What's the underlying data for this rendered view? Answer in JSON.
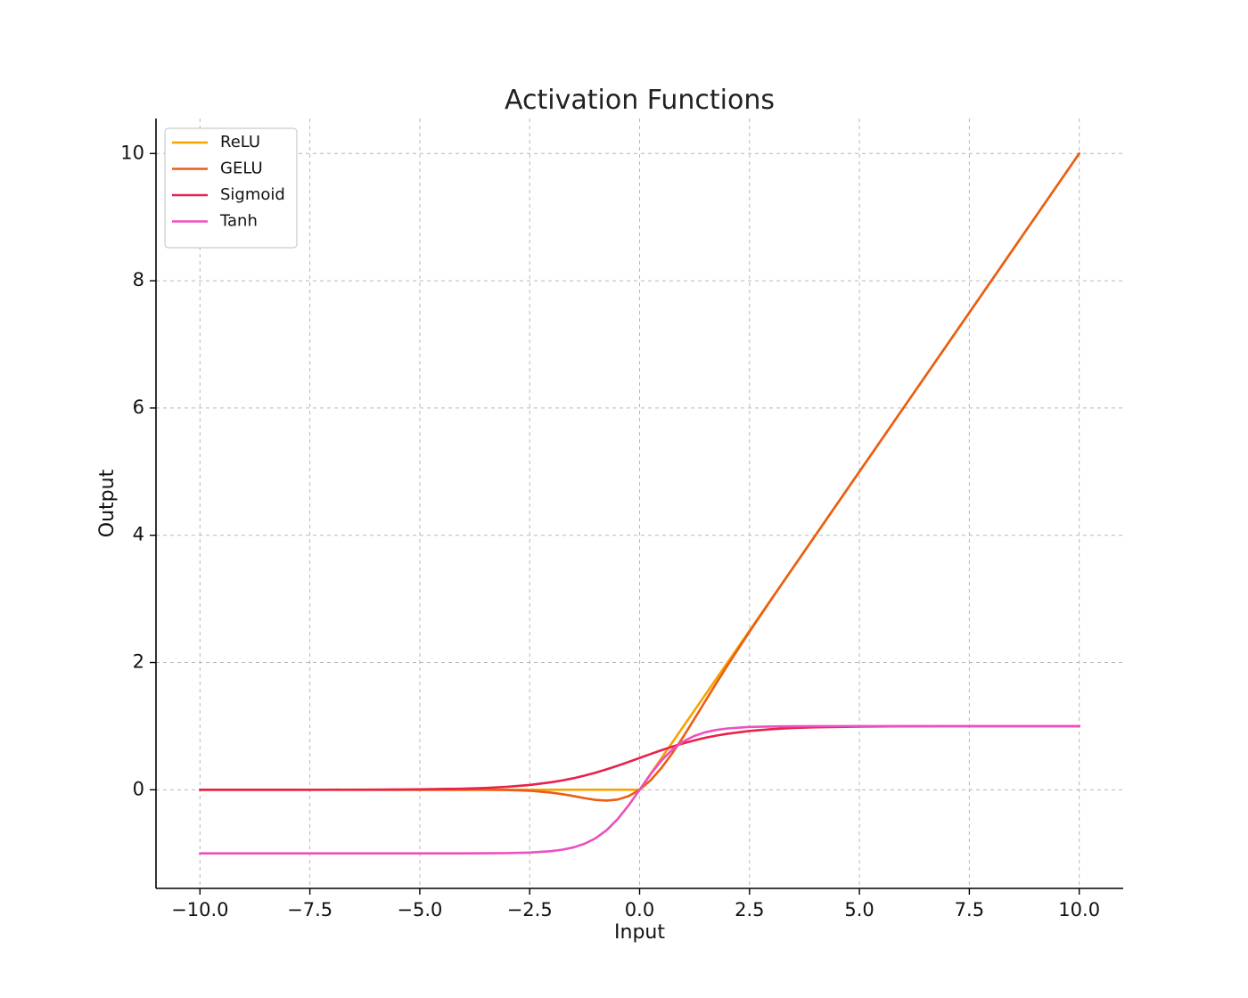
{
  "chart_data": {
    "type": "line",
    "title": "Activation Functions",
    "xlabel": "Input",
    "ylabel": "Output",
    "xlim": [
      -11,
      11
    ],
    "ylim": [
      -1.55,
      10.55
    ],
    "x_ticks": [
      -10,
      -7.5,
      -5,
      -2.5,
      0,
      2.5,
      5,
      7.5,
      10
    ],
    "x_tick_labels": [
      "−10.0",
      "−7.5",
      "−5.0",
      "−2.5",
      "0.0",
      "2.5",
      "5.0",
      "7.5",
      "10.0"
    ],
    "y_ticks": [
      0,
      2,
      4,
      6,
      8,
      10
    ],
    "y_tick_labels": [
      "0",
      "2",
      "4",
      "6",
      "8",
      "10"
    ],
    "grid": true,
    "legend": "upper left",
    "x": [
      -10,
      -9,
      -8,
      -7,
      -6,
      -5,
      -4,
      -3.5,
      -3,
      -2.5,
      -2,
      -1.75,
      -1.5,
      -1.25,
      -1,
      -0.75,
      -0.5,
      -0.25,
      0,
      0.25,
      0.5,
      0.75,
      1,
      1.25,
      1.5,
      1.75,
      2,
      2.5,
      3,
      3.5,
      4,
      5,
      6,
      7,
      8,
      9,
      10
    ],
    "series": [
      {
        "name": "ReLU",
        "color": "#f5a300",
        "values": [
          0,
          0,
          0,
          0,
          0,
          0,
          0,
          0,
          0,
          0,
          0,
          0,
          0,
          0,
          0,
          0,
          0,
          0,
          0,
          0.25,
          0.5,
          0.75,
          1,
          1.25,
          1.5,
          1.75,
          2,
          2.5,
          3,
          3.5,
          4,
          5,
          6,
          7,
          8,
          9,
          10
        ]
      },
      {
        "name": "GELU",
        "color": "#ea5e13",
        "values": [
          0,
          0,
          0,
          0,
          0,
          0,
          -0.0001,
          -0.0008,
          -0.004,
          -0.015,
          -0.045,
          -0.07,
          -0.1,
          -0.132,
          -0.159,
          -0.17,
          -0.154,
          -0.1,
          0,
          0.15,
          0.346,
          0.58,
          0.841,
          1.118,
          1.4,
          1.68,
          1.955,
          2.485,
          2.996,
          3.499,
          4,
          5,
          6,
          7,
          8,
          9,
          10
        ]
      },
      {
        "name": "Sigmoid",
        "color": "#e8224a",
        "values": [
          5e-05,
          0.0001,
          0.0003,
          0.0009,
          0.0025,
          0.0067,
          0.018,
          0.029,
          0.047,
          0.076,
          0.119,
          0.148,
          0.182,
          0.223,
          0.269,
          0.321,
          0.378,
          0.438,
          0.5,
          0.562,
          0.622,
          0.679,
          0.731,
          0.777,
          0.818,
          0.852,
          0.881,
          0.924,
          0.953,
          0.971,
          0.982,
          0.993,
          0.998,
          0.999,
          1,
          1,
          1
        ]
      },
      {
        "name": "Tanh",
        "color": "#ec4fc0",
        "values": [
          -1,
          -1,
          -1,
          -1,
          -1,
          -0.9999,
          -0.9993,
          -0.998,
          -0.995,
          -0.987,
          -0.964,
          -0.941,
          -0.905,
          -0.848,
          -0.762,
          -0.635,
          -0.462,
          -0.245,
          0,
          0.245,
          0.462,
          0.635,
          0.762,
          0.848,
          0.905,
          0.941,
          0.964,
          0.987,
          0.995,
          0.998,
          0.9993,
          0.9999,
          1,
          1,
          1,
          1,
          1
        ]
      }
    ]
  }
}
